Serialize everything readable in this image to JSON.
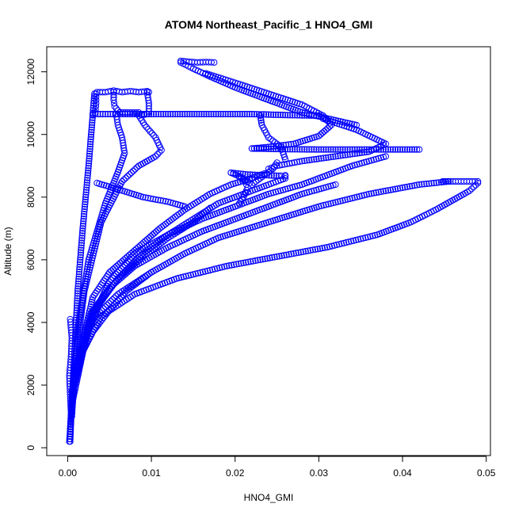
{
  "chart_data": {
    "type": "scatter",
    "title": "ATOM4 Northeast_Pacific_1 HNO4_GMI",
    "xlabel": "HNO4_GMI",
    "ylabel": "Altitude (m)",
    "xlim": [
      -0.0025,
      0.0505
    ],
    "ylim": [
      -250,
      12800
    ],
    "x_ticks": [
      0.0,
      0.01,
      0.02,
      0.03,
      0.04,
      0.05
    ],
    "x_tick_labels": [
      "0.00",
      "0.01",
      "0.02",
      "0.03",
      "0.04",
      "0.05"
    ],
    "y_ticks": [
      0,
      2000,
      4000,
      6000,
      8000,
      10000,
      12000
    ],
    "y_tick_labels": [
      "0",
      "2000",
      "4000",
      "6000",
      "8000",
      "10000",
      "12000"
    ],
    "marker": "open-circle",
    "color": "#0000ff",
    "grid": false,
    "legend": "none",
    "series": [
      {
        "x": [
          0.0003,
          0.0005,
          0.0008,
          0.0012,
          0.0018,
          0.0025,
          0.0032
        ],
        "y": [
          200,
          1500,
          3000,
          5000,
          7000,
          9000,
          11300
        ]
      },
      {
        "x": [
          0.0033,
          0.0034,
          0.0034,
          0.0035,
          0.0045,
          0.0055,
          0.0065,
          0.0075,
          0.0085,
          0.0095,
          0.0097
        ],
        "y": [
          10700,
          11000,
          11300,
          11350,
          11350,
          11400,
          11350,
          11380,
          11350,
          11380,
          11350
        ]
      },
      {
        "x": [
          0.0095,
          0.0097,
          0.0097
        ],
        "y": [
          11350,
          11000,
          10650
        ]
      },
      {
        "x": [
          0.0055,
          0.0055,
          0.0056,
          0.0062,
          0.0075,
          0.0085
        ],
        "y": [
          11350,
          11100,
          10900,
          10700,
          10700,
          10700
        ]
      },
      {
        "x": [
          0.003,
          0.006,
          0.01,
          0.014,
          0.018,
          0.022,
          0.026,
          0.03,
          0.0305
        ],
        "y": [
          10650,
          10650,
          10650,
          10650,
          10650,
          10650,
          10620,
          10600,
          10600
        ]
      },
      {
        "x": [
          0.0003,
          0.001,
          0.002,
          0.004,
          0.0065,
          0.0085,
          0.0105,
          0.0112,
          0.0105,
          0.0092,
          0.0085,
          0.0095
        ],
        "y": [
          600,
          3000,
          5000,
          7200,
          8500,
          9000,
          9300,
          9500,
          9900,
          10300,
          10600,
          10650
        ]
      },
      {
        "x": [
          0.0005,
          0.0012,
          0.0025,
          0.0045,
          0.006,
          0.0068,
          0.0065,
          0.006,
          0.0058
        ],
        "y": [
          1000,
          3800,
          6000,
          7800,
          8800,
          9400,
          9900,
          10300,
          10650
        ]
      },
      {
        "x": [
          0.0135,
          0.015,
          0.017,
          0.02,
          0.024,
          0.028,
          0.032,
          0.0345
        ],
        "y": [
          12300,
          12100,
          11850,
          11500,
          11100,
          10700,
          10450,
          10300
        ]
      },
      {
        "x": [
          0.0135,
          0.0145,
          0.0155,
          0.0165,
          0.0175
        ],
        "y": [
          12350,
          12320,
          12300,
          12310,
          12300
        ]
      },
      {
        "x": [
          0.0165,
          0.02,
          0.024,
          0.028,
          0.0305,
          0.0315,
          0.03,
          0.027,
          0.024,
          0.022
        ],
        "y": [
          11950,
          11650,
          11300,
          10950,
          10600,
          10300,
          9950,
          9700,
          9600,
          9550
        ]
      },
      {
        "x": [
          0.022,
          0.026,
          0.03,
          0.034,
          0.038,
          0.042
        ],
        "y": [
          9550,
          9530,
          9520,
          9520,
          9520,
          9520
        ]
      },
      {
        "x": [
          0.023,
          0.0232,
          0.024,
          0.0255,
          0.026
        ],
        "y": [
          10600,
          10300,
          9900,
          9600,
          9200
        ]
      },
      {
        "x": [
          0.0305,
          0.0345,
          0.038,
          0.036,
          0.032,
          0.028,
          0.025,
          0.024
        ],
        "y": [
          10500,
          10150,
          9700,
          9450,
          9300,
          9150,
          9000,
          8900
        ]
      },
      {
        "x": [
          0.0195,
          0.0215,
          0.0235,
          0.0255,
          0.026
        ],
        "y": [
          8780,
          8720,
          8700,
          8680,
          8660
        ]
      },
      {
        "x": [
          0.0195,
          0.021,
          0.022,
          0.0235,
          0.0245,
          0.025
        ],
        "y": [
          8780,
          8600,
          8400,
          8700,
          8900,
          9100
        ]
      },
      {
        "x": [
          0.0205,
          0.0212,
          0.0215,
          0.021,
          0.0205
        ],
        "y": [
          8650,
          8500,
          8300,
          8000,
          7800
        ]
      },
      {
        "x": [
          0.0006,
          0.0025,
          0.005,
          0.008,
          0.012,
          0.016,
          0.02,
          0.024,
          0.028,
          0.034,
          0.038
        ],
        "y": [
          1500,
          3900,
          5300,
          6200,
          6800,
          7300,
          7700,
          8100,
          8400,
          9000,
          9300
        ]
      },
      {
        "x": [
          0.0008,
          0.003,
          0.006,
          0.009,
          0.012,
          0.015,
          0.018,
          0.021,
          0.024,
          0.026,
          0.026
        ],
        "y": [
          2000,
          4300,
          5400,
          6200,
          6800,
          7300,
          7800,
          8100,
          8400,
          8600,
          8700
        ]
      },
      {
        "x": [
          0.001,
          0.003,
          0.005,
          0.008,
          0.011,
          0.014,
          0.017,
          0.0195,
          0.022,
          0.0235
        ],
        "y": [
          2500,
          4800,
          5600,
          6300,
          7000,
          7600,
          8100,
          8400,
          8600,
          8750
        ]
      },
      {
        "x": [
          0.001,
          0.003,
          0.006,
          0.01,
          0.014,
          0.018,
          0.024,
          0.03,
          0.036,
          0.042,
          0.0455
        ],
        "y": [
          2600,
          4100,
          4900,
          5600,
          6200,
          6700,
          7200,
          7700,
          8100,
          8400,
          8500
        ]
      },
      {
        "x": [
          0.0008,
          0.0028,
          0.005,
          0.008,
          0.012,
          0.016,
          0.02,
          0.024,
          0.028,
          0.032
        ],
        "y": [
          2300,
          4300,
          5100,
          5800,
          6400,
          6900,
          7300,
          7700,
          8100,
          8400
        ]
      },
      {
        "x": [
          0.0012,
          0.004,
          0.008,
          0.013,
          0.019,
          0.025,
          0.031,
          0.037,
          0.041,
          0.044,
          0.046,
          0.048,
          0.049
        ],
        "y": [
          2800,
          4200,
          4900,
          5400,
          5800,
          6100,
          6400,
          6800,
          7200,
          7600,
          7900,
          8200,
          8450
        ]
      },
      {
        "x": [
          0.0448,
          0.046,
          0.047,
          0.048,
          0.049
        ],
        "y": [
          8500,
          8500,
          8500,
          8500,
          8500
        ]
      },
      {
        "x": [
          0.0035,
          0.006,
          0.009,
          0.012,
          0.014
        ],
        "y": [
          8450,
          8250,
          8000,
          7850,
          7700
        ]
      },
      {
        "x": [
          0.0008,
          0.0022,
          0.004,
          0.006,
          0.009,
          0.012,
          0.015,
          0.017
        ],
        "y": [
          2000,
          3600,
          4700,
          5400,
          6100,
          6700,
          7200,
          7650
        ]
      },
      {
        "x": [
          0.0005,
          0.0015,
          0.003,
          0.005,
          0.007,
          0.01
        ],
        "y": [
          1800,
          2900,
          3700,
          4400,
          5000,
          5600
        ]
      },
      {
        "x": [
          0.0002,
          0.0003,
          0.0004,
          0.0003,
          0.0002,
          0.0004,
          0.0005,
          0.0003
        ],
        "y": [
          200,
          600,
          1100,
          1700,
          2300,
          2900,
          3500,
          4100
        ]
      }
    ]
  }
}
